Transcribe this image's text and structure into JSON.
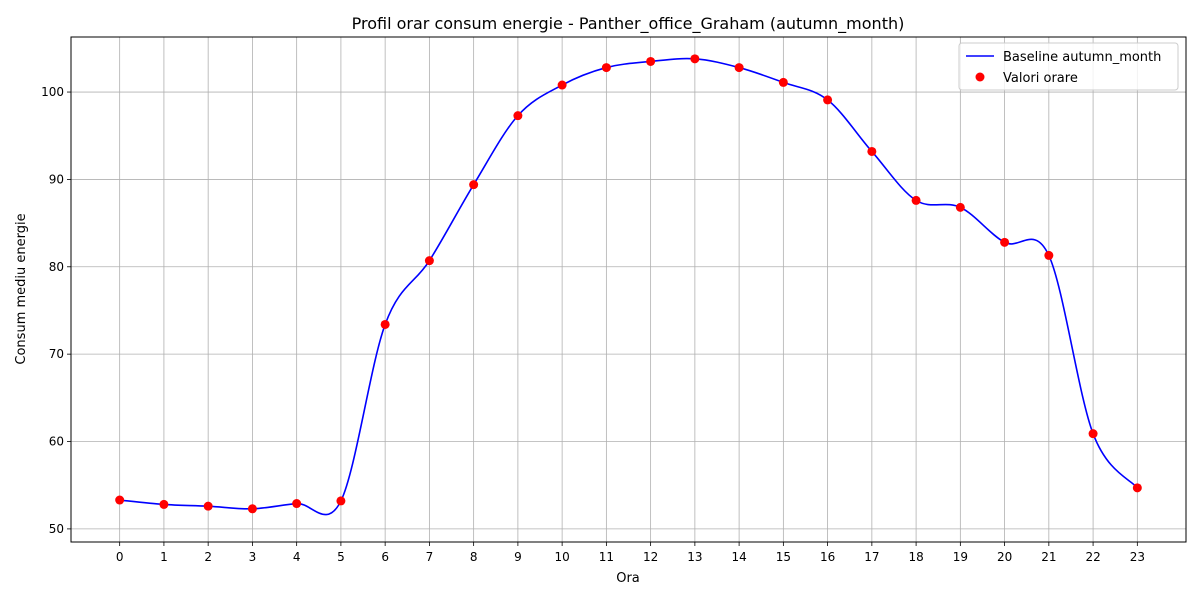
{
  "chart_data": {
    "type": "line",
    "title": "Profil orar consum energie - Panther_office_Graham (autumn_month)",
    "xlabel": "Ora",
    "ylabel": "Consum mediu energie",
    "x": [
      0,
      1,
      2,
      3,
      4,
      5,
      6,
      7,
      8,
      9,
      10,
      11,
      12,
      13,
      14,
      15,
      16,
      17,
      18,
      19,
      20,
      21,
      22,
      23
    ],
    "xticks": [
      "0",
      "1",
      "2",
      "3",
      "4",
      "5",
      "6",
      "7",
      "8",
      "9",
      "10",
      "11",
      "12",
      "13",
      "14",
      "15",
      "16",
      "17",
      "18",
      "19",
      "20",
      "21",
      "22",
      "23"
    ],
    "yticks": [
      "50",
      "60",
      "70",
      "80",
      "90",
      "100"
    ],
    "xlim": [
      -1.1,
      24.1
    ],
    "ylim": [
      48.5,
      106.3
    ],
    "grid": true,
    "legend_position": "top-right",
    "series": [
      {
        "name": "Baseline autumn_month",
        "kind": "smooth-line",
        "color": "#0000ff",
        "values": [
          53.3,
          52.8,
          52.6,
          52.3,
          52.9,
          53.2,
          73.4,
          80.7,
          89.4,
          97.3,
          100.8,
          102.8,
          103.5,
          103.8,
          102.8,
          101.1,
          99.1,
          93.2,
          87.6,
          86.8,
          82.8,
          81.3,
          60.9,
          54.7
        ]
      },
      {
        "name": "Valori orare",
        "kind": "scatter",
        "color": "#ff0000",
        "values": [
          53.3,
          52.8,
          52.6,
          52.3,
          52.9,
          53.2,
          73.4,
          80.7,
          89.4,
          97.3,
          100.8,
          102.8,
          103.5,
          103.8,
          102.8,
          101.1,
          99.1,
          93.2,
          87.6,
          86.8,
          82.8,
          81.3,
          60.9,
          54.7
        ]
      }
    ]
  }
}
